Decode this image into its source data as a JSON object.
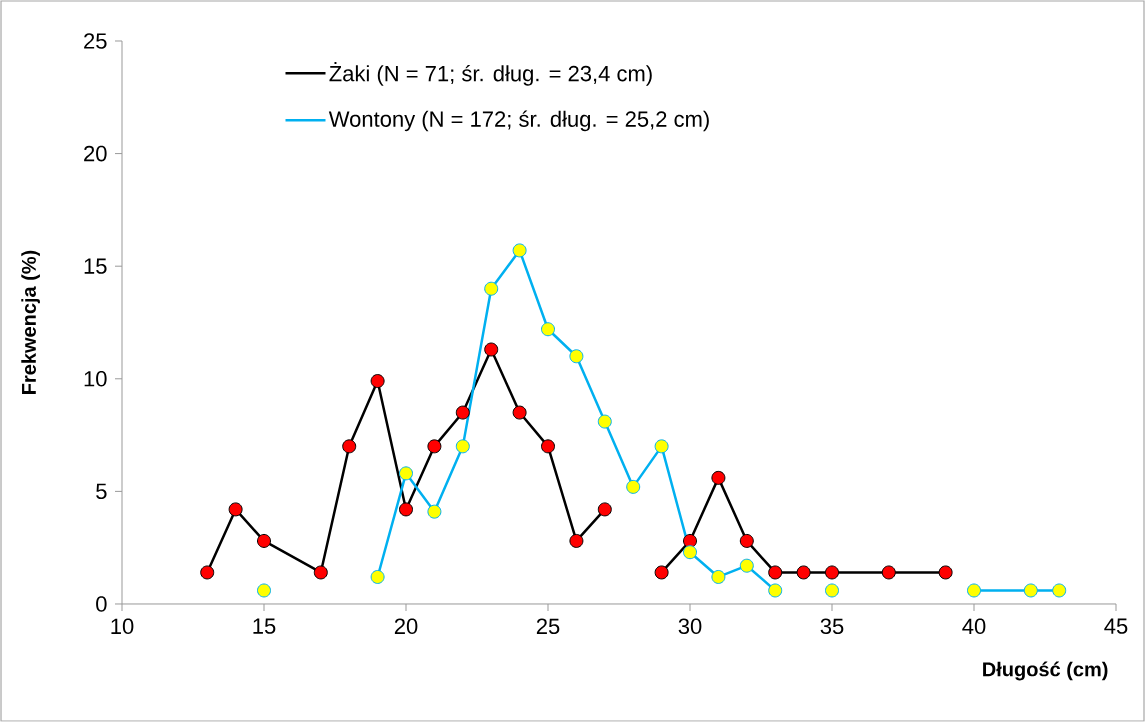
{
  "chart_data": {
    "type": "line",
    "xlabel": "Długość (cm)",
    "ylabel": "Frekwencja (%)",
    "xlim": [
      10,
      45
    ],
    "xticks": [
      10,
      15,
      20,
      25,
      30,
      35,
      40,
      45
    ],
    "ylim": [
      0,
      25
    ],
    "yticks": [
      0,
      5,
      10,
      15,
      20,
      25
    ],
    "grid": false,
    "legend": "top",
    "marker": "circle",
    "line_style": "solid",
    "series": [
      {
        "name": "Żaki (N = 71; śr. dług. = 23,4 cm)",
        "color": "#000000",
        "colors": [
          "#ff0000",
          "#ff0000",
          "#ff0000",
          "#ff0000",
          "#ff0000",
          "#ff0000",
          "#ff0000",
          "#ff0000",
          "#ff0000",
          "#ff0000",
          "#ff0000",
          "#ff0000",
          "#ff0000",
          "#ff0000",
          "#ff0000",
          "#ff0000",
          "#ff0000",
          "#ff0000",
          "#ff0000",
          "#ff0000",
          "#ff0000",
          "#ff0000",
          "#ff0000",
          "#ff0000"
        ],
        "x": [
          13,
          14,
          15,
          17,
          18,
          19,
          20,
          21,
          22,
          23,
          24,
          25,
          26,
          27,
          28,
          29,
          30,
          31,
          32,
          33,
          34,
          35,
          37,
          39
        ],
        "values": [
          1.4,
          4.2,
          2.8,
          1.4,
          7.0,
          9.9,
          4.2,
          7.0,
          8.5,
          11.3,
          8.5,
          7.0,
          2.8,
          4.2,
          null,
          1.4,
          2.8,
          5.6,
          2.8,
          1.4,
          1.4,
          1.4,
          1.4,
          1.4
        ]
      },
      {
        "name": "Wontony (N = 172; śr. dług. = 25,2 cm)",
        "color": "#00b0f0",
        "colors": [
          "#ffff00",
          "#ffff00",
          "#ffff00",
          "#ffff00",
          "#ffff00",
          "#ffff00",
          "#ffff00",
          "#ffff00",
          "#ffff00",
          "#ffff00",
          "#ffff00",
          "#ffff00",
          "#ffff00",
          "#ffff00",
          "#ffff00",
          "#ffff00",
          "#ffff00",
          "#ffff00",
          "#ffff00",
          "#ffff00",
          "#ffff00",
          "#ffff00",
          "#ffff00"
        ],
        "x": [
          15,
          16,
          19,
          20,
          21,
          22,
          23,
          24,
          25,
          26,
          27,
          28,
          29,
          30,
          31,
          32,
          33,
          34,
          35,
          36,
          40,
          42,
          43
        ],
        "values": [
          0.6,
          null,
          1.2,
          5.8,
          4.1,
          7.0,
          14.0,
          15.7,
          12.2,
          11.0,
          8.1,
          5.2,
          7.0,
          2.3,
          1.2,
          1.7,
          0.6,
          null,
          0.6,
          null,
          0.6,
          0.6,
          0.6
        ]
      }
    ]
  }
}
